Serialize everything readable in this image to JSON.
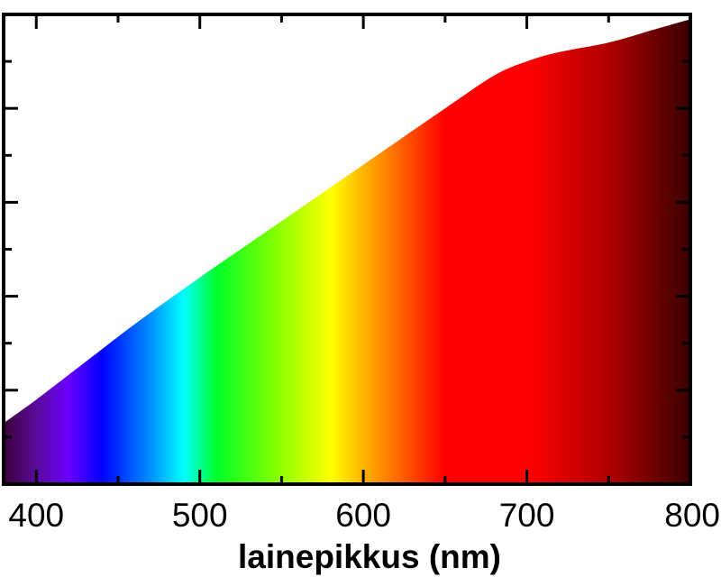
{
  "chart_data": {
    "type": "area",
    "title": "",
    "xlabel": "lainepikkus (nm)",
    "ylabel": "",
    "xlim": [
      380,
      800
    ],
    "ylim": [
      0,
      1
    ],
    "xticks": [
      {
        "value": 400,
        "label": "400"
      },
      {
        "value": 500,
        "label": "500"
      },
      {
        "value": 600,
        "label": "600"
      },
      {
        "value": 700,
        "label": "700"
      },
      {
        "value": 800,
        "label": "800"
      }
    ],
    "x_minor_ticks": [
      450,
      550,
      650,
      750
    ],
    "yticks": [
      0.1,
      0.2,
      0.3,
      0.4,
      0.5,
      0.6,
      0.7,
      0.8,
      0.9
    ],
    "grid": false,
    "series": [
      {
        "x": [
          380,
          400,
          430,
          460,
          500,
          550,
          600,
          650,
          680,
          700,
          720,
          750,
          780,
          800
        ],
        "y": [
          0.13,
          0.18,
          0.26,
          0.34,
          0.44,
          0.56,
          0.68,
          0.8,
          0.87,
          0.9,
          0.92,
          0.94,
          0.97,
          0.99
        ]
      }
    ],
    "fill_gradient": [
      {
        "wavelength": 380,
        "color": "#3a003a"
      },
      {
        "wavelength": 400,
        "color": "#5a0a9a"
      },
      {
        "wavelength": 420,
        "color": "#6a00ff"
      },
      {
        "wavelength": 440,
        "color": "#0000ff"
      },
      {
        "wavelength": 470,
        "color": "#0090ff"
      },
      {
        "wavelength": 490,
        "color": "#00ffff"
      },
      {
        "wavelength": 510,
        "color": "#00ff2a"
      },
      {
        "wavelength": 545,
        "color": "#80ff00"
      },
      {
        "wavelength": 580,
        "color": "#ffff00"
      },
      {
        "wavelength": 610,
        "color": "#ff9000"
      },
      {
        "wavelength": 650,
        "color": "#ff0000"
      },
      {
        "wavelength": 700,
        "color": "#ff0000"
      },
      {
        "wavelength": 750,
        "color": "#b00000"
      },
      {
        "wavelength": 800,
        "color": "#3a0000"
      }
    ]
  }
}
